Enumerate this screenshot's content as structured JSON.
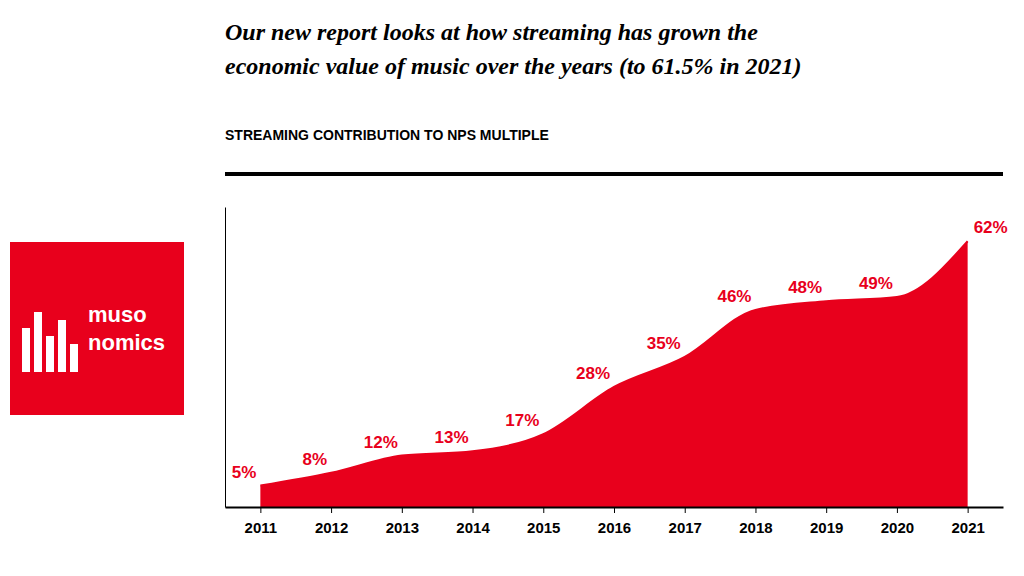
{
  "chart_data": {
    "type": "area",
    "title": [
      "Our new report looks at how streaming has grown the",
      "economic value of music over the years (to 61.5% in 2021)"
    ],
    "subtitle": "STREAMING CONTRIBUTION TO NPS MULTIPLE",
    "annotations": [
      "muso",
      "nomics"
    ],
    "x": [
      2011,
      2012,
      2013,
      2014,
      2015,
      2016,
      2017,
      2018,
      2019,
      2020,
      2021
    ],
    "values": [
      5,
      8,
      12,
      13,
      17,
      28,
      35,
      46,
      48,
      49,
      62
    ],
    "value_labels": [
      "5%",
      "8%",
      "12%",
      "13%",
      "17%",
      "28%",
      "35%",
      "46%",
      "48%",
      "49%",
      "62%"
    ],
    "data_labels": true,
    "color": "#E8001C",
    "xlim": [
      2010.5,
      2021.5
    ],
    "xticks": [
      2011,
      2012,
      2013,
      2014,
      2015,
      2016,
      2017,
      2018,
      2019,
      2020,
      2021
    ],
    "ylim": [
      0,
      70
    ],
    "yticks": [],
    "tick_labels": "x",
    "grid": false
  }
}
